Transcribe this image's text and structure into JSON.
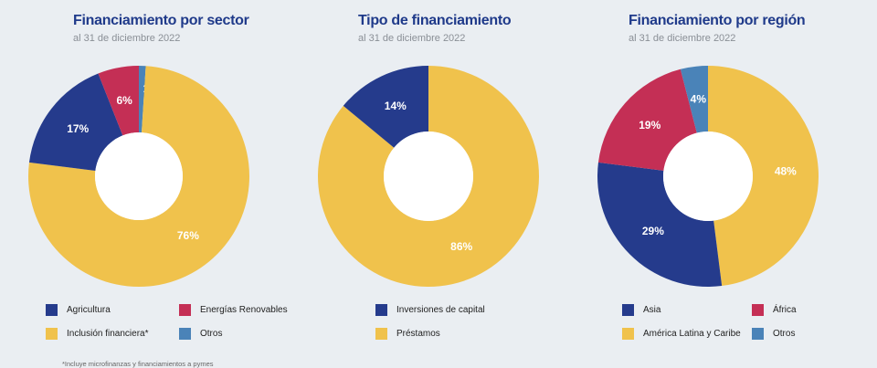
{
  "colors": {
    "agricultura": "#253b8c",
    "energias": "#c42f55",
    "inclusion": "#f0c24c",
    "otros": "#4a83b8",
    "inversiones": "#253b8c",
    "prestamos": "#f0c24c",
    "asia": "#253b8c",
    "africa": "#c42f55",
    "america": "#f0c24c"
  },
  "chart_data": [
    {
      "type": "pie",
      "title": "Financiamiento por sector",
      "subtitle": "al 31 de diciembre 2022",
      "slices": [
        {
          "label": "Otros",
          "value": 1,
          "pct_label": "1%",
          "color": "#4a83b8"
        },
        {
          "label": "Inclusión financiera*",
          "value": 76,
          "pct_label": "76%",
          "color": "#f0c24c"
        },
        {
          "label": "Agricultura",
          "value": 17,
          "pct_label": "17%",
          "color": "#253b8c"
        },
        {
          "label": "Energías Renovables",
          "value": 6,
          "pct_label": "6%",
          "color": "#c42f55"
        }
      ],
      "legend": [
        {
          "label": "Agricultura",
          "color": "#253b8c"
        },
        {
          "label": "Energías Renovables",
          "color": "#c42f55"
        },
        {
          "label": "Inclusión financiera*",
          "color": "#f0c24c"
        },
        {
          "label": "Otros",
          "color": "#4a83b8"
        }
      ]
    },
    {
      "type": "pie",
      "title": "Tipo de financiamiento",
      "subtitle": "al 31 de diciembre 2022",
      "slices": [
        {
          "label": "Préstamos",
          "value": 86,
          "pct_label": "86%",
          "color": "#f0c24c"
        },
        {
          "label": "Inversiones de capital",
          "value": 14,
          "pct_label": "14%",
          "color": "#253b8c"
        }
      ],
      "legend": [
        {
          "label": "Inversiones de capital",
          "color": "#253b8c"
        },
        {
          "label": "Préstamos",
          "color": "#f0c24c"
        }
      ]
    },
    {
      "type": "pie",
      "title": "Financiamiento por región",
      "subtitle": "al 31 de diciembre 2022",
      "slices": [
        {
          "label": "América Latina y Caribe",
          "value": 48,
          "pct_label": "48%",
          "color": "#f0c24c"
        },
        {
          "label": "Asia",
          "value": 29,
          "pct_label": "29%",
          "color": "#253b8c"
        },
        {
          "label": "África",
          "value": 19,
          "pct_label": "19%",
          "color": "#c42f55"
        },
        {
          "label": "Otros",
          "value": 4,
          "pct_label": "4%",
          "color": "#4a83b8"
        }
      ],
      "legend": [
        {
          "label": "Asia",
          "color": "#253b8c"
        },
        {
          "label": "África",
          "color": "#c42f55"
        },
        {
          "label": "América Latina y Caribe",
          "color": "#f0c24c"
        },
        {
          "label": "Otros",
          "color": "#4a83b8"
        }
      ]
    }
  ],
  "footnote": "*Incluye microfinanzas y financiamientos a pymes"
}
